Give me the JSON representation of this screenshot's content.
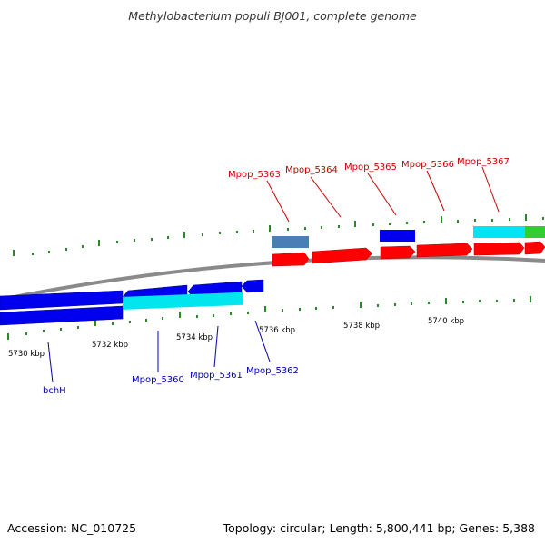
{
  "title": "Methylobacterium populi BJ001, complete genome",
  "accession": "Accession: NC_010725",
  "stats": "Topology: circular; Length: 5,800,441 bp; Genes: 5,388",
  "colors": {
    "backbone": "#8a8a8a",
    "tick": "#2a8a2a",
    "forward_cds": "#ff0000",
    "reverse_cds": "#0000ff",
    "cyan_feature": "#00e5ee",
    "steel_feature": "#4a7fb5",
    "green_feature": "#33cc33",
    "label_forward": "#cc0000",
    "label_reverse": "#0000aa"
  },
  "scale_labels": [
    "5730 kbp",
    "5732 kbp",
    "5734 kbp",
    "5736 kbp",
    "5738 kbp",
    "5740 kbp"
  ],
  "forward_labels": [
    "Mpop_5363",
    "Mpop_5364",
    "Mpop_5365",
    "Mpop_5366",
    "Mpop_5367"
  ],
  "reverse_labels": [
    "bchH",
    "Mpop_5360",
    "Mpop_5361",
    "Mpop_5362"
  ]
}
